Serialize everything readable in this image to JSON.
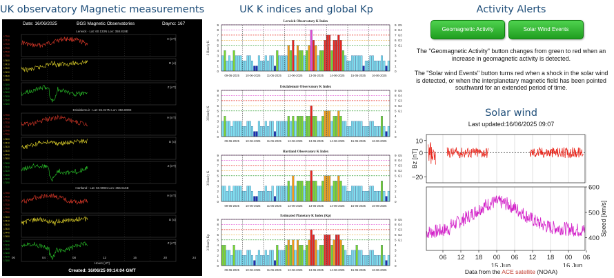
{
  "magnetometer": {
    "heading": "UK observatory Magnetic measurements",
    "date_label": "Date: 16/06/2025",
    "org_label": "BGS Magnetic Observatories",
    "dayno_label": "Dayno: 167",
    "observatories": [
      {
        "label": "Lerwick - Lat: 60.133N Lon: 358.818E",
        "axes": [
          "H (nT)",
          "D (o)",
          "Z (nT)"
        ],
        "colors": [
          "#e23a2a",
          "#e0d22a",
          "#2ac42a"
        ]
      },
      {
        "label": "Eskdalemuir - Lat: 55.317N Lon: 356.800E",
        "axes": [
          "H (nT)",
          "D (o)",
          "Z (nT)"
        ],
        "colors": [
          "#e23a2a",
          "#e0d22a",
          "#2ac42a"
        ]
      },
      {
        "label": "Hartland - Lat: 50.995N Lon: 355.516E",
        "axes": [
          "H (nT)",
          "D (o)",
          "Z (nT)"
        ],
        "colors": [
          "#e23a2a",
          "#e0d22a",
          "#2ac42a"
        ]
      }
    ],
    "x_ticks": [
      "00",
      "04",
      "08",
      "12",
      "16",
      "20",
      "24"
    ],
    "x_label": "Hours (UT)",
    "created": "Created: 16/06/25 09:14:04 GMT"
  },
  "k_indices": {
    "heading": "UK K indices and global Kp",
    "dates": [
      "09-06-2025",
      "10-06-2025",
      "11-06-2025",
      "12-06-2025",
      "13-06-2025",
      "14-06-2025",
      "15-06-2025",
      "16-06-2025"
    ],
    "left_ticks": [
      "0",
      "1",
      "2",
      "3",
      "4",
      "5",
      "6",
      "7",
      "8",
      "9"
    ],
    "right_ticks": [
      "0",
      "1",
      "2",
      "3",
      "4",
      "5",
      "6",
      "7",
      "8",
      "9"
    ],
    "g_levels": [
      "G1",
      "G2",
      "G3",
      "G4",
      "G5"
    ],
    "palette": {
      "k0_3": "#7fdff0",
      "k4": "#7bd42f",
      "k5": "#f39c12",
      "k6": "#e8261c",
      "k8": "#e04bd0",
      "dark": "#1c2fb0"
    },
    "charts": [
      {
        "title": "Lerwick Observatory K Index",
        "ylabel": "3 Hourly K",
        "values": [
          3,
          4,
          2,
          3,
          2,
          4,
          3,
          3,
          3,
          2,
          2,
          3,
          3,
          2,
          1,
          1,
          3,
          2,
          2,
          3,
          2,
          3,
          3,
          1,
          4,
          3,
          3,
          3,
          3,
          5,
          4,
          6,
          3,
          5,
          4,
          4,
          3,
          4,
          5,
          8,
          6,
          5,
          3,
          4,
          4,
          6,
          7,
          7,
          4,
          6,
          6,
          7,
          6,
          4,
          3,
          2,
          2,
          3,
          3,
          3,
          3,
          3,
          1,
          2,
          2,
          3,
          3,
          2,
          2,
          2,
          3,
          2,
          1,
          2
        ]
      },
      {
        "title": "Eskdalemuir Observatory K Index",
        "ylabel": "3 Hourly K",
        "values": [
          3,
          4,
          3,
          3,
          2,
          3,
          3,
          3,
          3,
          2,
          2,
          3,
          3,
          2,
          1,
          1,
          3,
          2,
          2,
          3,
          2,
          3,
          3,
          1,
          3,
          3,
          3,
          3,
          3,
          4,
          3,
          4,
          3,
          4,
          4,
          4,
          3,
          4,
          4,
          6,
          4,
          4,
          3,
          3,
          4,
          5,
          5,
          5,
          3,
          4,
          4,
          5,
          4,
          3,
          3,
          2,
          2,
          3,
          3,
          3,
          3,
          3,
          2,
          2,
          2,
          3,
          3,
          2,
          2,
          2,
          4,
          2,
          1,
          2
        ]
      },
      {
        "title": "Hartland Observatory K Index",
        "ylabel": "3 Hourly K",
        "values": [
          3,
          3,
          2,
          3,
          2,
          3,
          3,
          3,
          3,
          2,
          2,
          3,
          3,
          2,
          1,
          1,
          2,
          2,
          2,
          3,
          2,
          2,
          3,
          1,
          3,
          3,
          3,
          3,
          3,
          4,
          3,
          5,
          3,
          4,
          4,
          4,
          3,
          4,
          4,
          6,
          4,
          4,
          3,
          3,
          4,
          5,
          5,
          5,
          3,
          4,
          4,
          5,
          4,
          3,
          3,
          2,
          2,
          3,
          3,
          3,
          3,
          3,
          2,
          2,
          2,
          3,
          3,
          2,
          2,
          2,
          4,
          2,
          1,
          2
        ]
      },
      {
        "title": "Estimated Planetary K Index (Kp)",
        "ylabel": "3 Hourly Kp",
        "values": [
          4,
          4,
          3,
          3,
          2,
          4,
          3,
          3,
          3,
          2,
          2,
          3,
          3,
          2,
          1,
          2,
          3,
          2,
          2,
          3,
          2,
          3,
          3,
          1,
          4,
          3,
          3,
          3,
          4,
          5,
          4,
          5,
          3,
          5,
          4,
          4,
          3,
          4,
          5,
          7,
          6,
          5,
          3,
          4,
          4,
          6,
          6,
          6,
          4,
          5,
          6,
          6,
          5,
          4,
          3,
          2,
          2,
          3,
          3,
          4,
          3,
          3,
          2,
          2,
          2,
          3,
          3,
          2,
          2,
          2,
          4,
          2,
          1,
          2
        ]
      }
    ]
  },
  "alerts": {
    "heading": "Activity Alerts",
    "geomagnetic_button": "Geomagnetic Activity",
    "solar_wind_button": "Solar Wind Events",
    "button_state": "green",
    "text1": "The \"Geomagnetic Activity\" button changes from green to red when an increase in geomagnetic activity is detected.",
    "text2": "The \"Solar wind Events\" button turns red when a shock in the solar wind is detected, or when the interplanetary magnetic field has been pointed southward for an extended period of time."
  },
  "solar_wind": {
    "heading": "Solar wind",
    "updated": "Last updated:16/06/2025 09:07",
    "chart_data": {
      "type": "line",
      "bz": {
        "ylabel": "Bz [nT]",
        "ylim": [
          -25,
          15
        ],
        "ticks": [
          "10",
          "0",
          "−20"
        ],
        "color": "#e8261c"
      },
      "speed": {
        "ylabel": "Speed [km/s]",
        "ylim": [
          350,
          600
        ],
        "ticks": [
          "600",
          "500",
          "400"
        ],
        "color": "#d21fc8"
      },
      "x_ticks": [
        "06",
        "12",
        "18",
        "00",
        "06",
        "12",
        "18",
        "00",
        "06"
      ],
      "x_dates": [
        "15 Jun",
        "16 Jun"
      ]
    },
    "footer_pre": "Data from the",
    "footer_link": "ACE satellite",
    "footer_post": "(NOAA)"
  }
}
